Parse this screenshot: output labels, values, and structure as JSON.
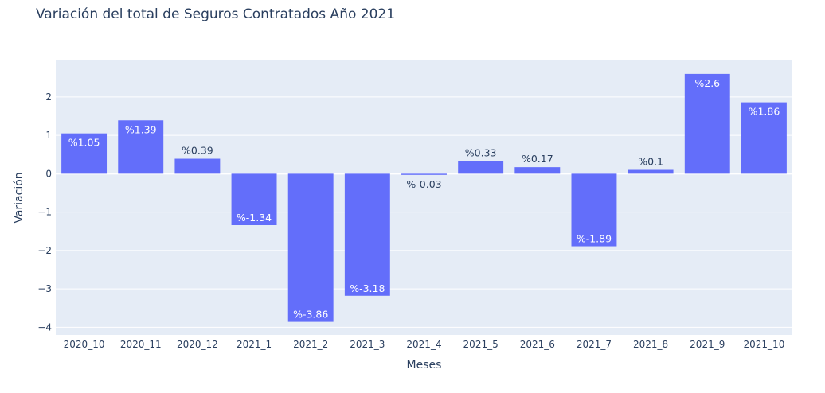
{
  "chart_data": {
    "type": "bar",
    "title": "Variación del total de Seguros Contratados Año 2021",
    "xlabel": "Meses",
    "ylabel": "Variación",
    "categories": [
      "2020_10",
      "2020_11",
      "2020_12",
      "2021_1",
      "2021_2",
      "2021_3",
      "2021_4",
      "2021_5",
      "2021_6",
      "2021_7",
      "2021_8",
      "2021_9",
      "2021_10"
    ],
    "values": [
      1.05,
      1.39,
      0.39,
      -1.34,
      -3.86,
      -3.18,
      -0.03,
      0.33,
      0.17,
      -1.89,
      0.1,
      2.6,
      1.86
    ],
    "data_labels": [
      "%1.05",
      "%1.39",
      "%0.39",
      "%-1.34",
      "%-3.86",
      "%-3.18",
      "%-0.03",
      "%0.33",
      "%0.17",
      "%-1.89",
      "%0.1",
      "%2.6",
      "%1.86"
    ],
    "ylim": [
      -4.2,
      2.95
    ],
    "yticks": [
      -4,
      -3,
      -2,
      -1,
      0,
      1,
      2
    ],
    "ytick_labels": [
      "−4",
      "−3",
      "−2",
      "−1",
      "0",
      "1",
      "2"
    ],
    "grid": true,
    "legend": "none",
    "colors": {
      "bar": "#636efa",
      "plot_bg": "#e5ecf6",
      "grid": "#ffffff",
      "text": "#2a3f5f"
    }
  }
}
